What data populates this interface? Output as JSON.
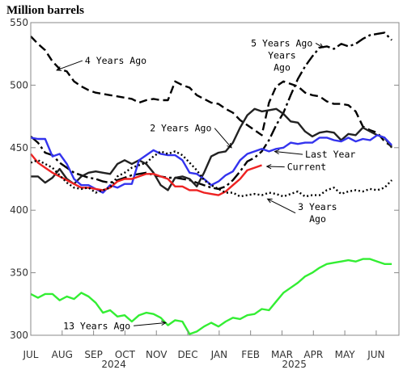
{
  "chart_data": {
    "type": "line",
    "title": "",
    "unit_label": "Million barrels",
    "xlabel": "",
    "ylabel": "",
    "ylim": [
      300,
      550
    ],
    "yticks": [
      300,
      350,
      400,
      450,
      500,
      550
    ],
    "x_range": [
      0,
      51
    ],
    "months": [
      {
        "label": "JUL",
        "pos": 0
      },
      {
        "label": "AUG",
        "pos": 4.35
      },
      {
        "label": "SEP",
        "pos": 8.7
      },
      {
        "label": "OCT",
        "pos": 13.05
      },
      {
        "label": "NOV",
        "pos": 17.4
      },
      {
        "label": "DEC",
        "pos": 21.75
      },
      {
        "label": "JAN",
        "pos": 26.1
      },
      {
        "label": "FEB",
        "pos": 30.45
      },
      {
        "label": "MAR",
        "pos": 34.8
      },
      {
        "label": "APR",
        "pos": 39.15
      },
      {
        "label": "MAY",
        "pos": 43.5
      },
      {
        "label": "JUN",
        "pos": 47.85
      }
    ],
    "years": [
      {
        "label": "2024",
        "pos": 11.5
      },
      {
        "label": "2025",
        "pos": 36.5
      }
    ],
    "grid": false,
    "legend": "none",
    "series": [
      {
        "name": "4 Years Ago",
        "color": "#000000",
        "dash": "10,5",
        "values": [
          539,
          533,
          528,
          519,
          513,
          511,
          503,
          499,
          496,
          494,
          493,
          492,
          491,
          490,
          489,
          486,
          488,
          489,
          488,
          488,
          503,
          500,
          498,
          492,
          489,
          486,
          485,
          481,
          478,
          472,
          468,
          464,
          460,
          486,
          499,
          503,
          501,
          499,
          494,
          492,
          491,
          487,
          485,
          485,
          484,
          479,
          467,
          464,
          462,
          455,
          451
        ]
      },
      {
        "name": "5 Years Ago",
        "color": "#000000",
        "dash": "14,4,3,4",
        "values": [
          459,
          454,
          446,
          444,
          438,
          434,
          430,
          428,
          426,
          425,
          423,
          422,
          424,
          426,
          428,
          429,
          430,
          428,
          427,
          426,
          426,
          425,
          424,
          422,
          420,
          418,
          417,
          419,
          424,
          431,
          439,
          442,
          447,
          456,
          468,
          478,
          492,
          505,
          515,
          523,
          530,
          531,
          529,
          533,
          531,
          533,
          537,
          540,
          541,
          542,
          536
        ]
      },
      {
        "name": "2 Years Ago",
        "color": "#222222",
        "dash": "",
        "values": [
          427,
          427,
          422,
          426,
          433,
          425,
          421,
          427,
          430,
          431,
          430,
          429,
          437,
          440,
          437,
          440,
          437,
          430,
          420,
          416,
          426,
          427,
          425,
          419,
          430,
          443,
          446,
          447,
          454,
          466,
          476,
          481,
          479,
          480,
          481,
          477,
          471,
          470,
          463,
          459,
          462,
          463,
          462,
          456,
          461,
          460,
          466,
          463,
          460,
          458,
          450
        ]
      },
      {
        "name": "Last Year",
        "color": "#3333ee",
        "dash": "",
        "values": [
          458,
          457,
          457,
          443,
          445,
          437,
          425,
          420,
          420,
          417,
          414,
          420,
          418,
          421,
          421,
          440,
          444,
          448,
          445,
          444,
          444,
          440,
          430,
          429,
          425,
          420,
          423,
          428,
          431,
          440,
          445,
          447,
          449,
          447,
          449,
          450,
          454,
          453,
          454,
          454,
          458,
          458,
          456,
          455,
          458,
          455,
          457,
          456,
          460,
          458,
          452
        ]
      },
      {
        "name": "Current",
        "color": "#ee2222",
        "dash": "",
        "values": [
          445,
          438,
          434,
          430,
          427,
          424,
          421,
          418,
          418,
          417,
          416,
          418,
          423,
          425,
          425,
          427,
          429,
          429,
          427,
          425,
          419,
          419,
          416,
          416,
          414,
          413,
          412,
          415,
          420,
          425,
          432,
          434,
          436,
          null,
          null,
          null,
          null,
          null,
          null,
          null,
          null,
          null,
          null,
          null,
          null,
          null,
          null,
          null,
          null,
          null,
          null
        ]
      },
      {
        "name": "3 Years Ago",
        "color": "#000000",
        "dash": "2,3",
        "values": [
          438,
          440,
          437,
          434,
          428,
          422,
          418,
          417,
          418,
          414,
          416,
          418,
          427,
          430,
          434,
          436,
          438,
          443,
          447,
          445,
          447,
          444,
          438,
          432,
          424,
          420,
          417,
          414,
          414,
          411,
          412,
          413,
          412,
          414,
          413,
          411,
          413,
          415,
          411,
          412,
          412,
          416,
          418,
          413,
          415,
          416,
          415,
          417,
          416,
          418,
          424
        ]
      },
      {
        "name": "13 Years Ago",
        "color": "#33ee33",
        "dash": "",
        "values": [
          333,
          330,
          333,
          333,
          328,
          331,
          329,
          334,
          331,
          326,
          318,
          320,
          315,
          316,
          311,
          316,
          318,
          317,
          314,
          308,
          312,
          311,
          301,
          303,
          307,
          310,
          307,
          311,
          314,
          313,
          316,
          317,
          321,
          320,
          327,
          334,
          338,
          342,
          347,
          350,
          354,
          357,
          358,
          359,
          360,
          359,
          361,
          361,
          359,
          357,
          357
        ]
      }
    ],
    "annotations": [
      {
        "text": "4 Years Ago",
        "series": "4 Years Ago",
        "tx": 7.5,
        "ty": 517,
        "ax": 3.6,
        "ay": 512
      },
      {
        "text": "5 Years Ago",
        "series": "5 Years Ago",
        "tx": 30.5,
        "ty": 531,
        "ax": 40.5,
        "ay": 530
      },
      {
        "text": "Years",
        "series": "5 Years Ago",
        "tx": 30.5,
        "ty": 531,
        "ax": 40.5,
        "ay": 530
      },
      {
        "text": "Ago",
        "series": "5 Years Ago",
        "tx": 30.5,
        "ty": 531,
        "ax": 40.5,
        "ay": 530
      },
      {
        "text": "2 Years Ago",
        "series": "2 Years Ago",
        "tx": 16.5,
        "ty": 463,
        "ax": 27.8,
        "ay": 450
      },
      {
        "text": "Last Year",
        "series": "Last Year",
        "tx": 38.0,
        "ty": 442,
        "ax": 33.8,
        "ay": 447
      },
      {
        "text": "Current",
        "series": "Current",
        "tx": 35.5,
        "ty": 432,
        "ax": 32.7,
        "ay": 435
      },
      {
        "text": "3 Years",
        "series": "3 Years Ago",
        "tx": 37.0,
        "ty": 400,
        "ax": 32.8,
        "ay": 409
      },
      {
        "text": "Ago",
        "series": "3 Years Ago",
        "tx": 37.0,
        "ty": 400,
        "ax": 32.8,
        "ay": 409
      },
      {
        "text": "13 Years Ago",
        "series": "13 Years Ago",
        "tx": 4.5,
        "ty": 305,
        "ax": 18.7,
        "ay": 310
      }
    ]
  }
}
